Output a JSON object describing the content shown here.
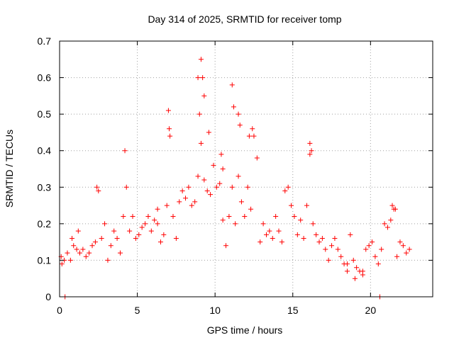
{
  "chart_data": {
    "type": "scatter",
    "title": "Day 314 of 2025, SRMTID for receiver tomp",
    "xlabel": "GPS time / hours",
    "ylabel": "SRMTID / TECUs",
    "xlim": [
      0,
      24
    ],
    "ylim": [
      0,
      0.7
    ],
    "xticks": [
      0,
      5,
      10,
      15,
      20
    ],
    "yticks": [
      0,
      0.1,
      0.2,
      0.3,
      0.4,
      0.5,
      0.6,
      0.7
    ],
    "xtick_labels": [
      "0",
      "5",
      "10",
      "15",
      "20"
    ],
    "ytick_labels": [
      "0",
      "0.1",
      "0.2",
      "0.3",
      "0.4",
      "0.5",
      "0.6",
      "0.7"
    ],
    "grid": true,
    "marker": "plus",
    "color": "#ff0000",
    "series": [
      {
        "name": "SRMTID",
        "x": [
          0.1,
          0.3,
          0.5,
          0.7,
          0.9,
          1.1,
          1.3,
          1.5,
          1.7,
          1.9,
          2.1,
          2.3,
          2.5,
          2.7,
          2.9,
          3.1,
          3.3,
          3.5,
          3.7,
          3.9,
          4.1,
          4.3,
          4.5,
          4.7,
          4.9,
          5.1,
          5.3,
          5.5,
          5.7,
          5.9,
          6.1,
          6.3,
          6.5,
          6.7,
          6.9,
          7.1,
          7.3,
          7.5,
          7.7,
          7.9,
          8.1,
          8.3,
          8.5,
          8.7,
          8.9,
          9.1,
          9.3,
          9.5,
          9.7,
          9.9,
          10.1,
          10.3,
          10.5,
          10.7,
          10.9,
          11.1,
          11.3,
          11.5,
          11.7,
          11.9,
          12.1,
          12.3,
          12.5,
          12.7,
          12.9,
          13.1,
          13.3,
          13.5,
          13.7,
          13.9,
          14.1,
          14.3,
          14.5,
          14.7,
          14.9,
          15.1,
          15.3,
          15.5,
          15.7,
          15.9,
          16.1,
          16.3,
          16.5,
          16.7,
          16.9,
          17.1,
          17.3,
          17.5,
          17.7,
          17.9,
          18.1,
          18.3,
          18.5,
          18.7,
          18.9,
          19.1,
          19.3,
          19.5,
          19.7,
          19.9,
          20.1,
          20.3,
          20.5,
          20.7,
          20.9,
          21.1,
          21.3,
          21.5,
          21.7,
          21.9,
          22.1,
          22.3,
          22.5,
          0.15,
          0.8,
          1.2,
          2.4,
          4.2,
          6.3,
          7.0,
          7.05,
          9.1,
          9.2,
          9.3,
          9.0,
          10.4,
          10.5,
          11.1,
          11.2,
          11.5,
          11.6,
          12.2,
          12.4,
          16.1,
          16.2,
          9.6,
          8.9,
          18.5,
          19.0,
          19.5,
          21.4,
          21.6,
          0.35,
          20.6
        ],
        "y": [
          0.11,
          0.1,
          0.12,
          0.1,
          0.14,
          0.13,
          0.12,
          0.13,
          0.11,
          0.12,
          0.14,
          0.15,
          0.29,
          0.16,
          0.2,
          0.1,
          0.14,
          0.18,
          0.16,
          0.12,
          0.22,
          0.3,
          0.18,
          0.22,
          0.16,
          0.17,
          0.19,
          0.2,
          0.22,
          0.18,
          0.21,
          0.24,
          0.15,
          0.17,
          0.25,
          0.44,
          0.22,
          0.16,
          0.26,
          0.29,
          0.27,
          0.3,
          0.25,
          0.26,
          0.33,
          0.42,
          0.32,
          0.29,
          0.28,
          0.36,
          0.3,
          0.31,
          0.21,
          0.14,
          0.22,
          0.3,
          0.2,
          0.33,
          0.26,
          0.22,
          0.3,
          0.24,
          0.44,
          0.38,
          0.15,
          0.2,
          0.17,
          0.18,
          0.16,
          0.22,
          0.18,
          0.15,
          0.29,
          0.3,
          0.25,
          0.22,
          0.17,
          0.21,
          0.16,
          0.25,
          0.39,
          0.2,
          0.17,
          0.15,
          0.16,
          0.13,
          0.1,
          0.14,
          0.16,
          0.13,
          0.11,
          0.09,
          0.07,
          0.17,
          0.1,
          0.08,
          0.07,
          0.07,
          0.13,
          0.14,
          0.15,
          0.11,
          0.09,
          0.13,
          0.2,
          0.19,
          0.21,
          0.24,
          0.11,
          0.15,
          0.14,
          0.12,
          0.13,
          0.09,
          0.16,
          0.18,
          0.3,
          0.4,
          0.2,
          0.51,
          0.46,
          0.65,
          0.6,
          0.55,
          0.5,
          0.39,
          0.35,
          0.58,
          0.52,
          0.5,
          0.47,
          0.44,
          0.46,
          0.42,
          0.4,
          0.45,
          0.6,
          0.09,
          0.05,
          0.06,
          0.25,
          0.24,
          0.0,
          0.0
        ]
      }
    ]
  }
}
